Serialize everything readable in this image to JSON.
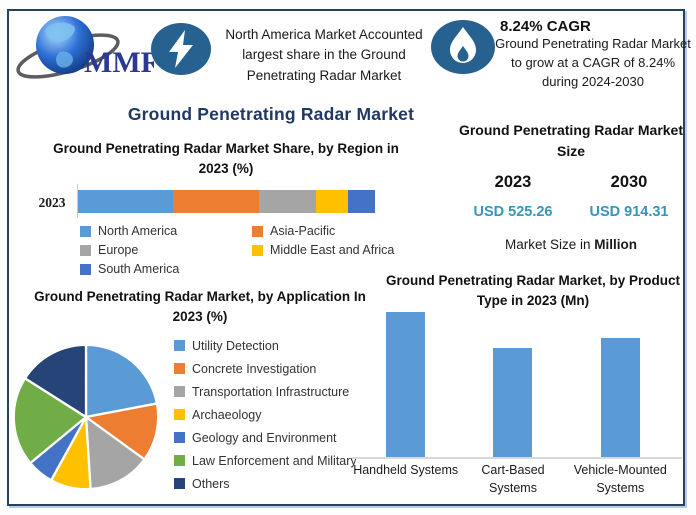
{
  "colors": {
    "frame_border": "#24425f",
    "title_navy": "#1f3864",
    "value_teal": "#3595bb",
    "icon_circle": "#26618f",
    "bar_blue": "#5b9bd5"
  },
  "header": {
    "logo": {
      "text": "MMR"
    },
    "banner1": {
      "icon": "lightning-icon",
      "text": "North America Market Accounted largest share in the Ground Penetrating Radar Market"
    },
    "banner2": {
      "icon": "flame-icon",
      "heading": "8.24% CAGR",
      "text": "Ground Penetrating Radar Market to grow at a CAGR of 8.24% during 2024-2030"
    }
  },
  "main_title": "Ground Penetrating Radar Market",
  "market_size": {
    "title": "Ground Penetrating Radar Market Size",
    "year_left": "2023",
    "year_right": "2030",
    "value_left": "USD 525.26",
    "value_right": "USD 914.31",
    "footnote_regular": "Market Size in ",
    "footnote_bold": "Million"
  },
  "chart_data": [
    {
      "type": "bar",
      "subtype": "stacked-horizontal",
      "title": "Ground Penetrating Radar Market Share, by Region in 2023 (%)",
      "categories": [
        "2023"
      ],
      "series": [
        {
          "name": "North America",
          "color": "#5b9bd5",
          "values": [
            32
          ]
        },
        {
          "name": "Asia-Pacific",
          "color": "#ed7d31",
          "values": [
            29
          ]
        },
        {
          "name": "Europe",
          "color": "#a5a5a5",
          "values": [
            19
          ]
        },
        {
          "name": "Middle East and Africa",
          "color": "#ffc000",
          "values": [
            11
          ]
        },
        {
          "name": "South America",
          "color": "#4472c4",
          "values": [
            9
          ]
        }
      ],
      "xlim": [
        0,
        100
      ],
      "legend_position": "bottom"
    },
    {
      "type": "pie",
      "title": "Ground Penetrating Radar Market, by Application In 2023 (%)",
      "labels": [
        "Utility Detection",
        "Concrete Investigation",
        "Transportation Infrastructure",
        "Archaeology",
        "Geology and Environment",
        "Law Enforcement and Military",
        "Others"
      ],
      "values": [
        22,
        13,
        14,
        9,
        6,
        20,
        16
      ],
      "colors": [
        "#5b9bd5",
        "#ed7d31",
        "#a5a5a5",
        "#ffc000",
        "#4472c4",
        "#70ad47",
        "#264478"
      ],
      "legend_position": "right"
    },
    {
      "type": "bar",
      "title": "Ground Penetrating Radar Market, by Product Type in 2023 (Mn)",
      "categories": [
        "Handheld Systems",
        "Cart-Based Systems",
        "Vehicle-Mounted Systems"
      ],
      "values": [
        100,
        75,
        82
      ],
      "ylim": [
        0,
        110
      ],
      "bar_color": "#5b9bd5",
      "grid": false
    }
  ]
}
